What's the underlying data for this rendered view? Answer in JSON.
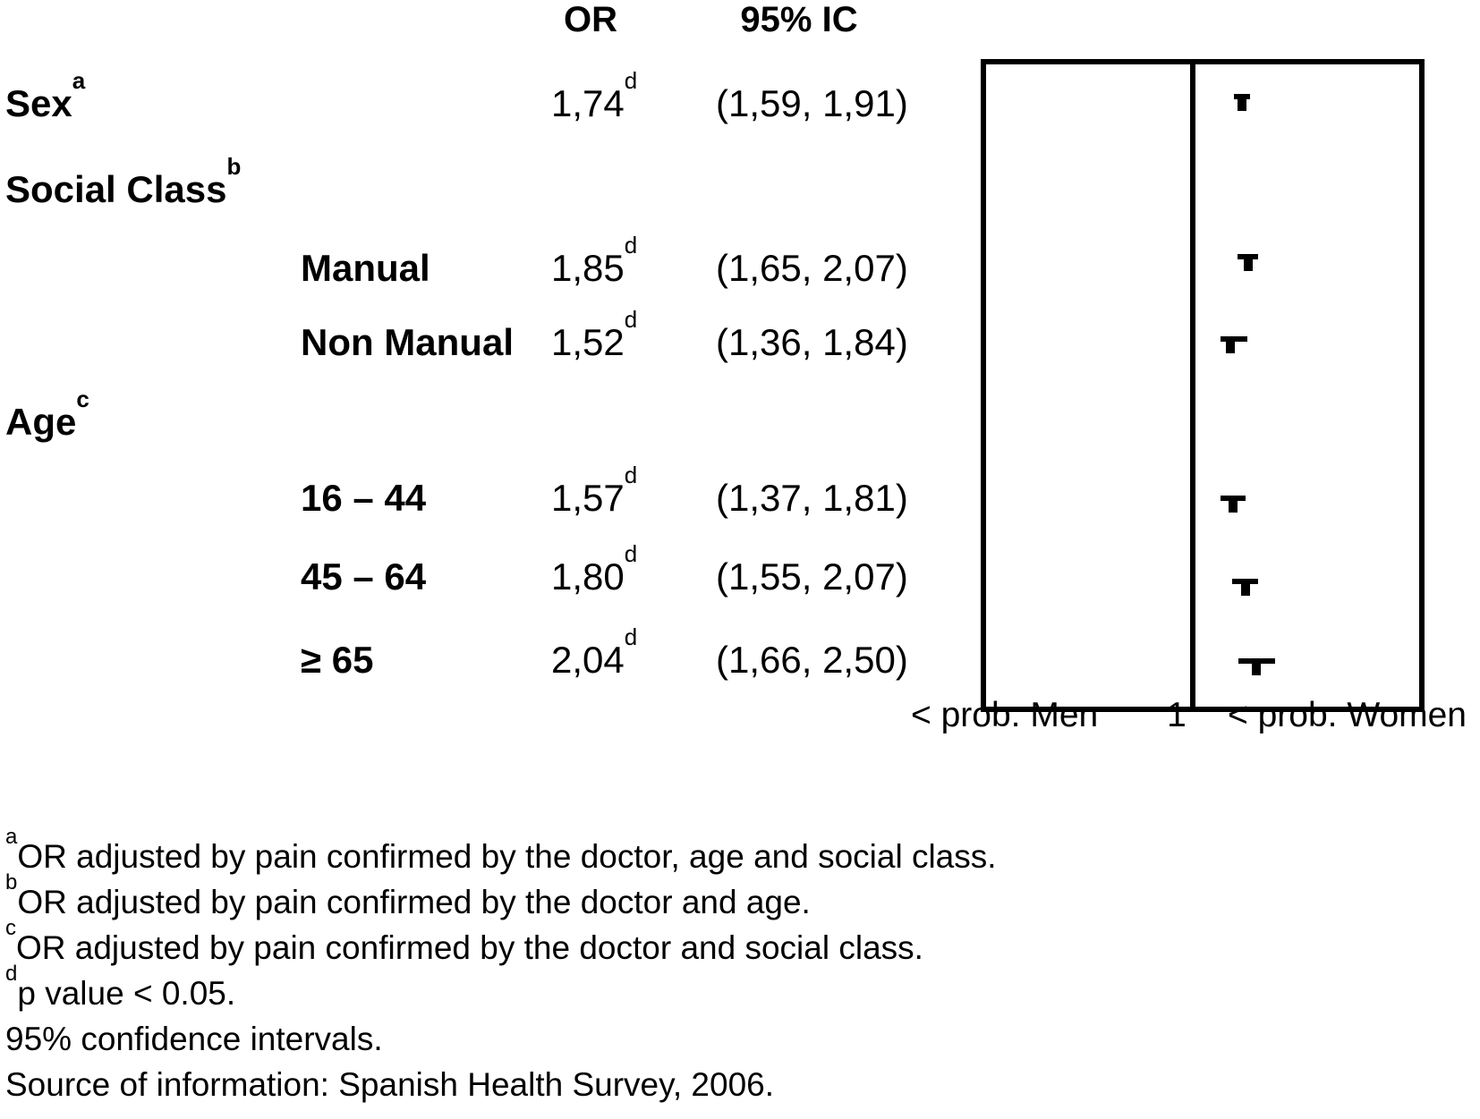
{
  "table": {
    "headers": {
      "or": "OR",
      "ci": "95% IC"
    },
    "rows": [
      {
        "label": "Sex",
        "label_sup": "a",
        "or": "1,74",
        "or_sup": "d",
        "ci": "(1,59, 1,91)"
      },
      {
        "label": "Social Class",
        "label_sup": "b"
      },
      {
        "label": "Manual",
        "or": "1,85",
        "or_sup": "d",
        "ci": "(1,65, 2,07)"
      },
      {
        "label": "Non Manual",
        "or": "1,52",
        "or_sup": "d",
        "ci": "(1,36, 1,84)"
      },
      {
        "label": "Age",
        "label_sup": "c"
      },
      {
        "label": "16 – 44",
        "or": "1,57",
        "or_sup": "d",
        "ci": "(1,37, 1,81)"
      },
      {
        "label": "45 – 64",
        "or": "1,80",
        "or_sup": "d",
        "ci": "(1,55, 2,07)"
      },
      {
        "label": "≥ 65",
        "or": "2,04",
        "or_sup": "d",
        "ci": "(1,66, 2,50)"
      }
    ]
  },
  "chart_data": {
    "type": "forest",
    "x_scale": "log",
    "reference_value": 1,
    "axis_labels": {
      "left": "< prob. Men",
      "center": "1",
      "right": "< prob. Women"
    },
    "series": [
      {
        "name": "Sex",
        "or": 1.74,
        "ci_low": 1.59,
        "ci_high": 1.91
      },
      {
        "name": "Manual",
        "or": 1.85,
        "ci_low": 1.65,
        "ci_high": 2.07
      },
      {
        "name": "Non Manual",
        "or": 1.52,
        "ci_low": 1.36,
        "ci_high": 1.84
      },
      {
        "name": "16 – 44",
        "or": 1.57,
        "ci_low": 1.37,
        "ci_high": 1.81
      },
      {
        "name": "45 – 64",
        "or": 1.8,
        "ci_low": 1.55,
        "ci_high": 2.07
      },
      {
        "name": "≥ 65",
        "or": 2.04,
        "ci_low": 1.66,
        "ci_high": 2.5
      }
    ],
    "colors": {
      "foreground": "#000000",
      "background": "#ffffff"
    }
  },
  "footnotes": [
    {
      "sup": "a",
      "text": "OR adjusted by pain confirmed by the doctor, age and social class."
    },
    {
      "sup": "b",
      "text": "OR adjusted by pain confirmed by the doctor and age."
    },
    {
      "sup": "c",
      "text": "OR adjusted by pain confirmed by the doctor and social class."
    },
    {
      "sup": "d",
      "text": "p value < 0.05."
    },
    {
      "sup": "",
      "text": "95% confidence intervals."
    },
    {
      "sup": "",
      "text": "Source of information: Spanish Health Survey, 2006."
    }
  ]
}
